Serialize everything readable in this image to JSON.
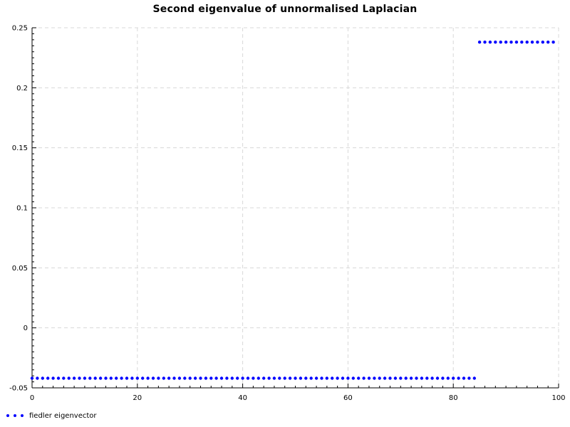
{
  "title": "Second eigenvalue of unnormalised Laplacian",
  "legend": {
    "label": "fiedler eigenvector",
    "marker": "dot",
    "marker_color": "#0000ff",
    "position": "bottom-left"
  },
  "colors": {
    "background": "#ffffff",
    "point": "#0000ff",
    "grid": "#d8d8d8",
    "axis": "#000000",
    "text": "#000000"
  },
  "chart_data": {
    "type": "scatter",
    "title": "Second eigenvalue of unnormalised Laplacian",
    "xlabel": "",
    "ylabel": "",
    "xlim": [
      0,
      100
    ],
    "ylim": [
      -0.05,
      0.25
    ],
    "x_ticks": [
      0,
      20,
      40,
      60,
      80,
      100
    ],
    "x_tick_labels": [
      "0",
      "20",
      "40",
      "60",
      "80",
      "100"
    ],
    "y_ticks": [
      -0.05,
      0,
      0.05,
      0.1,
      0.15,
      0.2,
      0.25
    ],
    "y_tick_labels": [
      "-0.05",
      "0",
      "0.05",
      "0.1",
      "0.15",
      "0.2",
      "0.25"
    ],
    "x_minor_step": 2,
    "y_minor_step": 0.005,
    "grid": true,
    "grid_style": "dashed",
    "legend_position": "bottom-left",
    "series": [
      {
        "name": "fiedler eigenvector",
        "marker": "dot",
        "color": "#0000ff",
        "n_points": 100,
        "description": "Component i of the Fiedler eigenvector vs index i: indices 0-84 constant at -0.042, indices 85-99 constant at 0.238",
        "segments": [
          {
            "x_start": 0,
            "x_end": 84,
            "y": -0.042,
            "count": 85
          },
          {
            "x_start": 85,
            "x_end": 99,
            "y": 0.238,
            "count": 15
          }
        ]
      }
    ]
  }
}
